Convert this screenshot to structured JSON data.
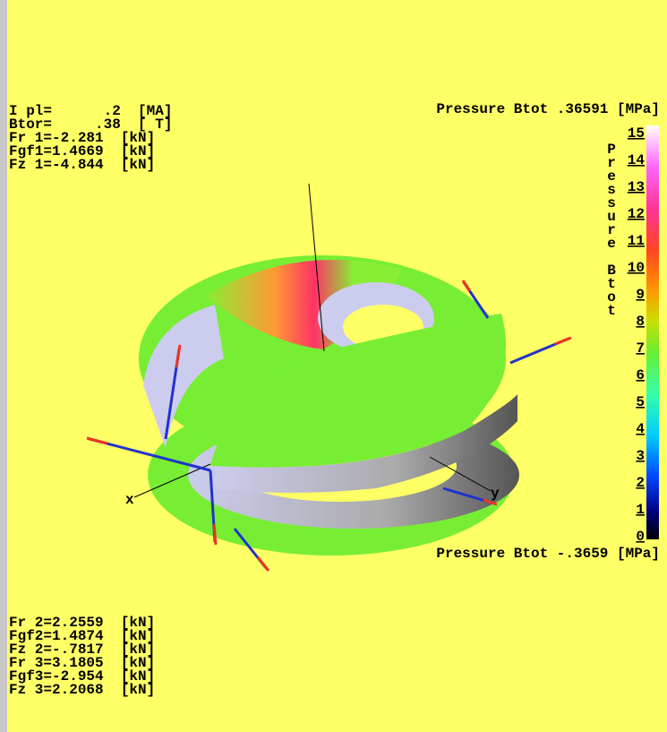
{
  "top_left": [
    "I pl=      .2  [MA]",
    "Btor=     .38  [ T]",
    "Fr 1=-2.281  [kN]",
    "Fgf1=1.4669  [kN]",
    "Fz 1=-4.844  [kN]"
  ],
  "bottom_left": [
    "Fr 2=2.2559  [kN]",
    "Fgf2=1.4874  [kN]",
    "Fz 2=-.7817  [kN]",
    "Fr 3=3.1805  [kN]",
    "Fgf3=-2.954  [kN]",
    "Fz 3=2.2068  [kN]"
  ],
  "colorbar": {
    "max_label": "Pressure Btot .36591 [MPa]",
    "min_label": "Pressure Btot -.3659 [MPa]",
    "title": "Pressure Btot",
    "ticks": [
      "15",
      "14",
      "13",
      "12",
      "11",
      "10",
      "9",
      "8",
      "7",
      "6",
      "5",
      "4",
      "3",
      "2",
      "1",
      "0"
    ]
  },
  "axes": {
    "x": "x",
    "y": "y"
  }
}
